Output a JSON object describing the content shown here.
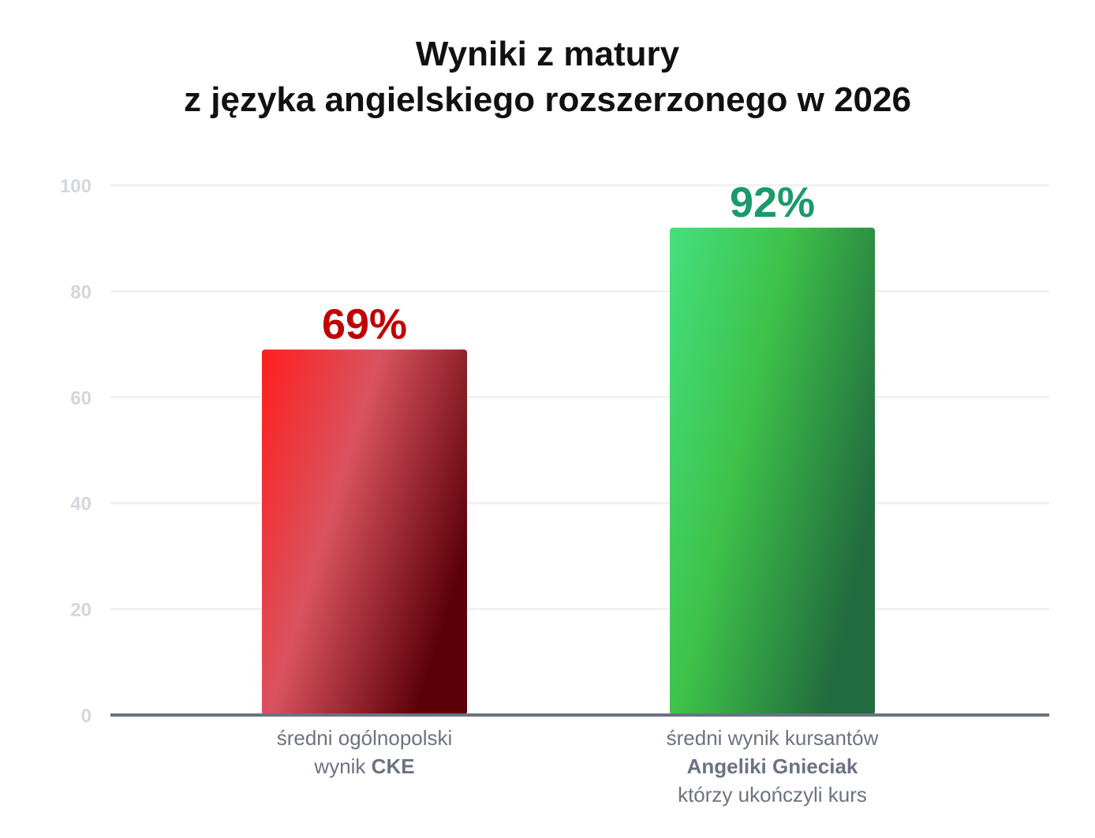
{
  "title": {
    "line1": "Wyniki z matury",
    "line2": "z języka angielskiego rozszerzonego w 2026"
  },
  "chart_data": {
    "type": "bar",
    "title": "Wyniki z matury z języka angielskiego rozszerzonego w 2026",
    "ylim": [
      0,
      100
    ],
    "yticks": [
      0,
      20,
      40,
      60,
      80,
      100
    ],
    "grid": true,
    "categories": [
      "średni ogólnopolski wynik CKE",
      "średni wynik kursantów Angeliki Gnieciak którzy ukończyli kurs"
    ],
    "values": [
      69,
      92
    ],
    "data_labels": [
      "69%",
      "92%"
    ],
    "colors": {
      "bar_1": "#d9535f",
      "bar_2": "#3ec24a",
      "label_1": "#c00000",
      "label_2": "#1a9a6a",
      "axis": "#6b7282",
      "grid": "#f0f1f3"
    }
  },
  "x_labels": {
    "cat1": {
      "line1": "średni ogólnopolski",
      "line2_prefix": "wynik ",
      "line2_bold": "CKE"
    },
    "cat2": {
      "line1": "średni wynik kursantów",
      "line2_bold": "Angeliki Gnieciak",
      "line3": "którzy ukończyli kurs"
    }
  }
}
